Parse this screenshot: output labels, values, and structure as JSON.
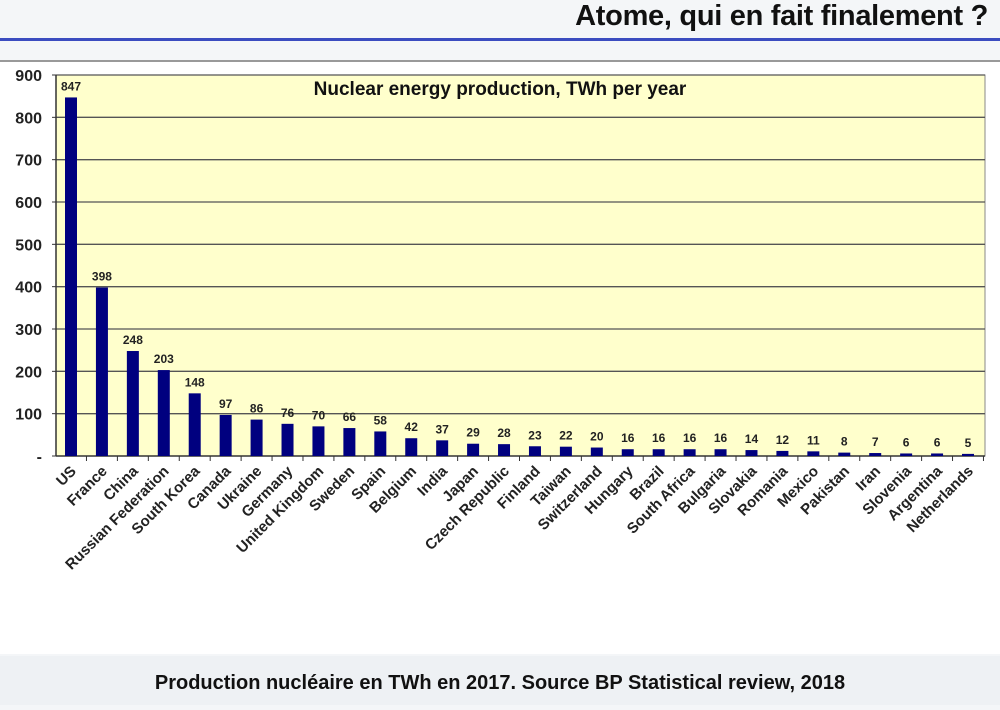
{
  "header": {
    "title": "Atome, qui en fait finalement ?"
  },
  "caption": "Production nucléaire en TWh en 2017. Source BP Statistical review, 2018",
  "colors": {
    "bar": "#00007f",
    "plot_bg": "#ffffcc",
    "grid": "#555555",
    "rule": "#3b4cc0"
  },
  "chart_data": {
    "type": "bar",
    "title": "Nuclear energy production, TWh per year",
    "xlabel": "",
    "ylabel": "",
    "ylim": [
      0,
      900
    ],
    "yticks": [
      0,
      100,
      200,
      300,
      400,
      500,
      600,
      700,
      800,
      900
    ],
    "ytick_labels": [
      "-",
      "100",
      "200",
      "300",
      "400",
      "500",
      "600",
      "700",
      "800",
      "900"
    ],
    "grid": true,
    "categories": [
      "US",
      "France",
      "China",
      "Russian Federation",
      "South Korea",
      "Canada",
      "Ukraine",
      "Germany",
      "United Kingdom",
      "Sweden",
      "Spain",
      "Belgium",
      "India",
      "Japan",
      "Czech Republic",
      "Finland",
      "Taiwan",
      "Switzerland",
      "Hungary",
      "Brazil",
      "South Africa",
      "Bulgaria",
      "Slovakia",
      "Romania",
      "Mexico",
      "Pakistan",
      "Iran",
      "Slovenia",
      "Argentina",
      "Netherlands"
    ],
    "values": [
      847,
      398,
      248,
      203,
      148,
      97,
      86,
      76,
      70,
      66,
      58,
      42,
      37,
      29,
      28,
      23,
      22,
      20,
      16,
      16,
      16,
      16,
      14,
      12,
      11,
      8,
      7,
      6,
      6,
      5
    ]
  }
}
